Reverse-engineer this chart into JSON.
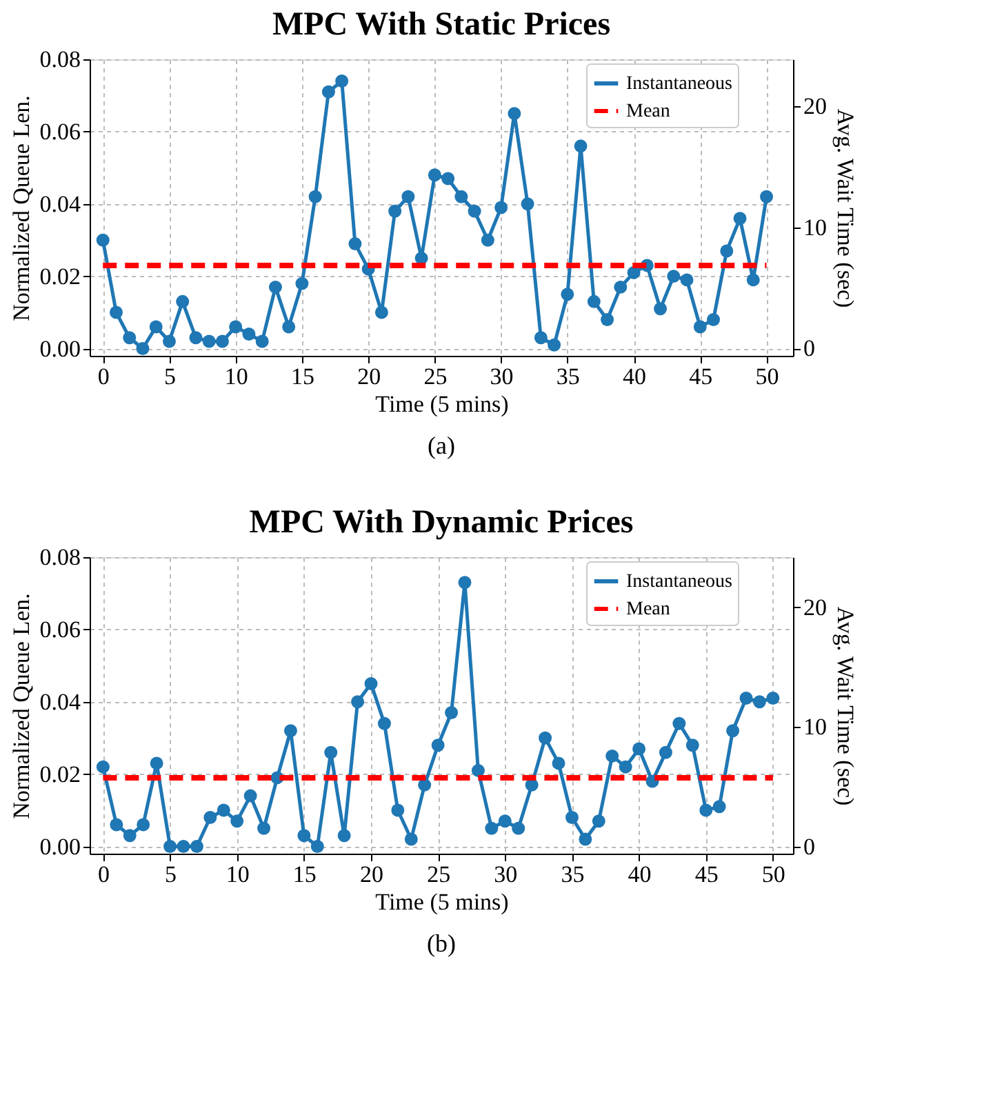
{
  "chart_data": [
    {
      "type": "line",
      "title": "MPC With Static Prices",
      "xlabel": "Time (5 mins)",
      "ylabel": "Normalized Queue Len.",
      "y2label": "Avg. Wait Time (sec)",
      "x": [
        0,
        1,
        2,
        3,
        4,
        5,
        6,
        7,
        8,
        9,
        10,
        11,
        12,
        13,
        14,
        15,
        16,
        17,
        18,
        19,
        20,
        21,
        22,
        23,
        24,
        25,
        26,
        27,
        28,
        29,
        30,
        31,
        32,
        33,
        34,
        35,
        36,
        37,
        38,
        39,
        40,
        41,
        42,
        43,
        44,
        45,
        46,
        47,
        48,
        49,
        50
      ],
      "series": [
        {
          "name": "Instantaneous",
          "color": "#1f77b4",
          "values": [
            0.03,
            0.01,
            0.003,
            0.0,
            0.006,
            0.002,
            0.013,
            0.003,
            0.002,
            0.002,
            0.006,
            0.004,
            0.002,
            0.017,
            0.006,
            0.018,
            0.042,
            0.071,
            0.074,
            0.029,
            0.022,
            0.01,
            0.038,
            0.042,
            0.025,
            0.048,
            0.047,
            0.042,
            0.038,
            0.03,
            0.039,
            0.065,
            0.04,
            0.003,
            0.001,
            0.015,
            0.056,
            0.013,
            0.008,
            0.017,
            0.021,
            0.023,
            0.011,
            0.02,
            0.019,
            0.006,
            0.008,
            0.027,
            0.036,
            0.019,
            0.042
          ]
        }
      ],
      "ref_lines": [
        {
          "axis": "y",
          "value": 0.023,
          "label": "Mean",
          "color": "#ff0000",
          "line_style": "dashed"
        }
      ],
      "xlim": [
        -1,
        52
      ],
      "xticks": [
        0,
        5,
        10,
        15,
        20,
        25,
        30,
        35,
        40,
        45,
        50
      ],
      "ylim": [
        -0.002,
        0.08
      ],
      "yticks": [
        {
          "value": 0,
          "label": "0.00"
        },
        0.02,
        0.04,
        0.06,
        0.08
      ],
      "y2lim": [
        -0.6,
        23.9
      ],
      "y2ticks": [
        0,
        10,
        20
      ],
      "grid": true,
      "legend": "top right",
      "marker": "circle",
      "line_style": "solid",
      "annotations": [
        "(a)"
      ]
    },
    {
      "type": "line",
      "title": "MPC With Dynamic Prices",
      "xlabel": "Time (5 mins)",
      "ylabel": "Normalized Queue Len.",
      "y2label": "Avg. Wait Time (sec)",
      "x": [
        0,
        1,
        2,
        3,
        4,
        5,
        6,
        7,
        8,
        9,
        10,
        11,
        12,
        13,
        14,
        15,
        16,
        17,
        18,
        19,
        20,
        21,
        22,
        23,
        24,
        25,
        26,
        27,
        28,
        29,
        30,
        31,
        32,
        33,
        34,
        35,
        36,
        37,
        38,
        39,
        40,
        41,
        42,
        43,
        44,
        45,
        46,
        47,
        48,
        49,
        50
      ],
      "series": [
        {
          "name": "Instantaneous",
          "color": "#1f77b4",
          "values": [
            0.022,
            0.006,
            0.003,
            0.006,
            0.023,
            0.0,
            0.0,
            0.0,
            0.008,
            0.01,
            0.007,
            0.014,
            0.005,
            0.019,
            0.032,
            0.003,
            0.0,
            0.026,
            0.003,
            0.04,
            0.045,
            0.034,
            0.01,
            0.002,
            0.017,
            0.028,
            0.037,
            0.073,
            0.021,
            0.005,
            0.007,
            0.005,
            0.017,
            0.03,
            0.023,
            0.008,
            0.002,
            0.007,
            0.025,
            0.022,
            0.027,
            0.018,
            0.026,
            0.034,
            0.028,
            0.01,
            0.011,
            0.032,
            0.041,
            0.04,
            0.041
          ]
        }
      ],
      "ref_lines": [
        {
          "axis": "y",
          "value": 0.019,
          "label": "Mean",
          "color": "#ff0000",
          "line_style": "dashed"
        }
      ],
      "xlim": [
        -1,
        51.5
      ],
      "xticks": [
        0,
        5,
        10,
        15,
        20,
        25,
        30,
        35,
        40,
        45,
        50
      ],
      "ylim": [
        -0.002,
        0.08
      ],
      "yticks": [
        {
          "value": 0,
          "label": "0.00"
        },
        0.02,
        0.04,
        0.06,
        0.08
      ],
      "y2lim": [
        -0.6,
        24.2
      ],
      "y2ticks": [
        0,
        10,
        20
      ],
      "grid": true,
      "legend": "top right",
      "marker": "circle",
      "line_style": "solid",
      "annotations": [
        "(b)"
      ]
    }
  ]
}
